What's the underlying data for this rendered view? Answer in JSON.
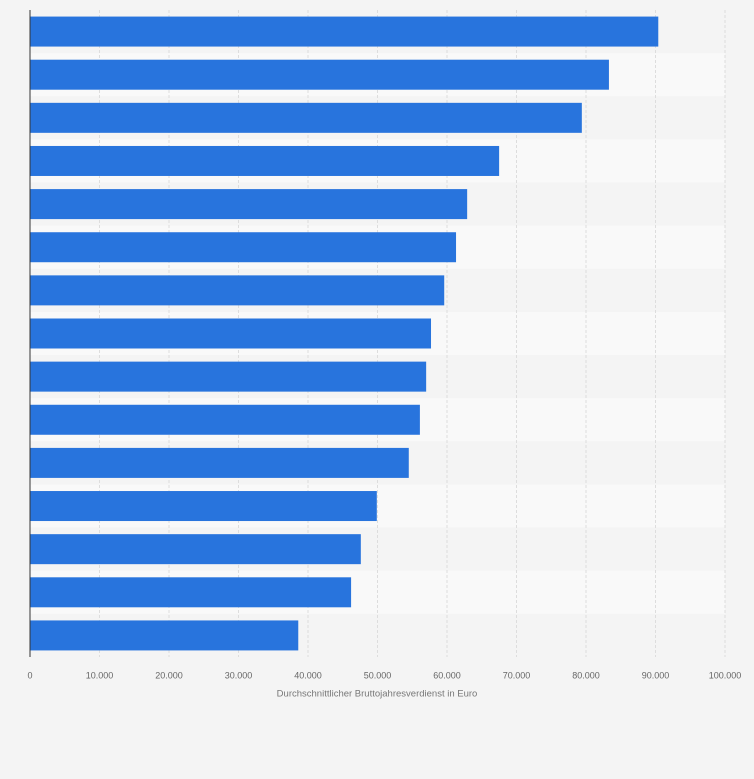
{
  "chart_data": {
    "type": "hbar",
    "xlabel": "Durchschnittlicher Bruttojahresverdienst in Euro",
    "categories": [
      null,
      null,
      null,
      null,
      null,
      null,
      null,
      null,
      null,
      null,
      null,
      null,
      null,
      null,
      null
    ],
    "values": [
      90400,
      83300,
      79400,
      67500,
      62900,
      61300,
      59600,
      57700,
      57000,
      56100,
      54500,
      49900,
      47600,
      46200,
      38600
    ],
    "color": "#2874dd",
    "xlim": [
      0,
      100000
    ],
    "xticks": [
      0,
      {
        "value": 10000,
        "label": "10.000"
      },
      {
        "value": 20000,
        "label": "20.000"
      },
      {
        "value": 30000,
        "label": "30.000"
      },
      {
        "value": 40000,
        "label": "40.000"
      },
      {
        "value": 50000,
        "label": "50.000"
      },
      {
        "value": 60000,
        "label": "60.000"
      },
      {
        "value": 70000,
        "label": "70.000"
      },
      {
        "value": 80000,
        "label": "80.000"
      },
      {
        "value": 90000,
        "label": "90.000"
      },
      {
        "value": 100000,
        "label": "100.000"
      }
    ],
    "grid": true
  }
}
